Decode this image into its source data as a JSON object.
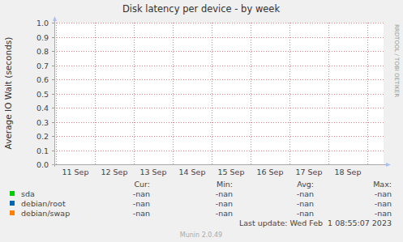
{
  "chart_data": {
    "type": "line",
    "title": "Disk latency per device - by week",
    "y_label": "Average IO Wait (seconds)",
    "categories": [
      "11 Sep",
      "12 Sep",
      "13 Sep",
      "14 Sep",
      "15 Sep",
      "16 Sep",
      "17 Sep",
      "18 Sep"
    ],
    "series": [
      {
        "name": "sda",
        "color": "#00cc00",
        "values": [
          null,
          null,
          null,
          null,
          null,
          null,
          null,
          null
        ],
        "stats": [
          "-nan",
          "-nan",
          "-nan",
          "-nan"
        ]
      },
      {
        "name": "debian/root",
        "color": "#0066b3",
        "values": [
          null,
          null,
          null,
          null,
          null,
          null,
          null,
          null
        ],
        "stats": [
          "-nan",
          "-nan",
          "-nan",
          "-nan"
        ]
      },
      {
        "name": "debian/swap",
        "color": "#ff8000",
        "values": [
          null,
          null,
          null,
          null,
          null,
          null,
          null,
          null
        ],
        "stats": [
          "-nan",
          "-nan",
          "-nan",
          "-nan"
        ]
      }
    ],
    "stat_headers": [
      "Cur:",
      "Min:",
      "Avg:",
      "Max:"
    ],
    "ylim": [
      0,
      1
    ],
    "yticks": [
      {
        "value": 0,
        "label": "0.0"
      },
      0.1,
      0.2,
      0.3,
      0.4,
      0.5,
      0.6,
      0.7,
      0.8,
      0.9,
      {
        "value": 1,
        "label": "1.0"
      }
    ],
    "grid": true,
    "footer": "Last update: Wed Feb  1 08:55:07 2023",
    "credit": "Munin 2.0.49",
    "watermark": "RRDTOOL / TOBI OETIKER"
  }
}
